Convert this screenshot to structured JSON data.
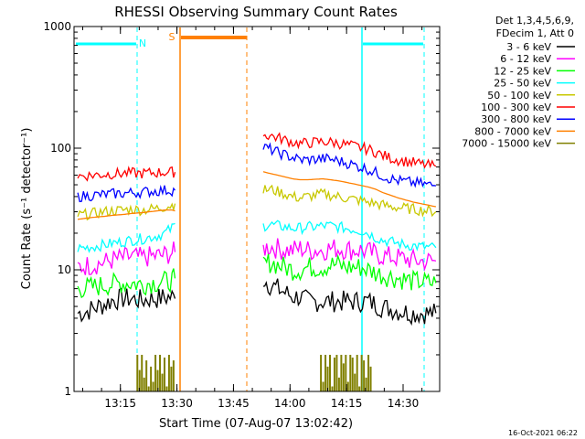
{
  "chart_data": {
    "type": "line",
    "title": "RHESSI Observing Summary Count Rates",
    "xlabel": "Start Time (07-Aug-07 13:02:42)",
    "ylabel": "Count Rate (s⁻¹ detector⁻¹)",
    "yscale": "log",
    "ylim": [
      1,
      1000
    ],
    "xlim_minutes": [
      0,
      97
    ],
    "y_ticks": [
      {
        "v": 1,
        "label": "1"
      },
      {
        "v": 10,
        "label": "10"
      },
      {
        "v": 100,
        "label": "100"
      },
      {
        "v": 1000,
        "label": "1000"
      }
    ],
    "x_ticks": [
      {
        "t": 12.3,
        "label": "13:15"
      },
      {
        "t": 27.3,
        "label": "13:30"
      },
      {
        "t": 42.3,
        "label": "13:45"
      },
      {
        "t": 57.3,
        "label": "14:00"
      },
      {
        "t": 72.3,
        "label": "14:15"
      },
      {
        "t": 87.3,
        "label": "14:30"
      }
    ],
    "legend_header": [
      "Det 1,3,4,5,6,9,",
      "FDecim 1, Att 0"
    ],
    "series": [
      {
        "name": "3 - 6 keV",
        "color": "#000000",
        "segments": [
          {
            "x": [
              1,
              3,
              5,
              8,
              10,
              13,
              15,
              18,
              20,
              22,
              24,
              26,
              26.8
            ],
            "y": [
              4.4,
              4.5,
              4.8,
              5.2,
              5.6,
              5.8,
              5.8,
              5.6,
              5.8,
              5.8,
              5.9,
              6.0,
              5.8
            ]
          },
          {
            "x": [
              50.2,
              51,
              52,
              54,
              56,
              58,
              60,
              62,
              64,
              66,
              68,
              70,
              72,
              74,
              76,
              78,
              80,
              82,
              84,
              86,
              88,
              90,
              92,
              94,
              96
            ],
            "y": [
              8.5,
              8,
              7.5,
              7,
              6.5,
              6,
              6,
              5.5,
              5.5,
              5.5,
              5.5,
              5.5,
              5.5,
              5.5,
              5.5,
              5.5,
              5.2,
              4.9,
              4.8,
              4.6,
              4.5,
              4.4,
              4.4,
              4.4,
              4.4
            ]
          }
        ]
      },
      {
        "name": "6 - 12 keV",
        "color": "#ff00ff",
        "segments": [
          {
            "x": [
              1,
              3,
              5,
              8,
              10,
              13,
              15,
              18,
              20,
              22,
              24,
              26,
              26.8
            ],
            "y": [
              10.5,
              10.8,
              11,
              11.5,
              12,
              12.5,
              12.8,
              12.5,
              12.8,
              13,
              13.2,
              13.8,
              14
            ]
          },
          {
            "x": [
              50.2,
              52,
              54,
              56,
              58,
              60,
              62,
              64,
              66,
              68,
              70,
              72,
              74,
              76,
              78,
              80,
              82,
              84,
              86,
              88,
              90,
              92,
              94,
              96
            ],
            "y": [
              15,
              15.5,
              15,
              14.5,
              14.5,
              15,
              14.5,
              14.5,
              14.5,
              15,
              15,
              14.8,
              14.5,
              14.5,
              14,
              13.5,
              13,
              12.8,
              12.5,
              12.3,
              12,
              11.8,
              11.8,
              11.8
            ]
          }
        ]
      },
      {
        "name": "12 - 25 keV",
        "color": "#00ff00",
        "segments": [
          {
            "x": [
              1,
              3,
              5,
              8,
              10,
              13,
              15,
              18,
              20,
              22,
              24,
              26,
              26.8
            ],
            "y": [
              7,
              7.1,
              7.2,
              7.5,
              7.6,
              7.8,
              7.8,
              7.6,
              7.8,
              7.9,
              8,
              8.2,
              8.5
            ]
          },
          {
            "x": [
              50.2,
              52,
              54,
              56,
              58,
              60,
              62,
              64,
              66,
              68,
              70,
              72,
              74,
              76,
              78,
              80,
              82,
              84,
              86,
              88,
              90,
              92,
              94,
              96
            ],
            "y": [
              11,
              11.5,
              11,
              10.5,
              10,
              10,
              10.5,
              10.5,
              10.5,
              11,
              11,
              10.5,
              10.5,
              10.5,
              10,
              9.5,
              9,
              8.8,
              8.5,
              8.3,
              8,
              8,
              7.8,
              7.8
            ]
          }
        ]
      },
      {
        "name": "25 - 50 keV",
        "color": "#00ffff",
        "segments": [
          {
            "x": [
              1,
              3,
              5,
              8,
              10,
              13,
              15,
              18,
              20,
              22,
              24,
              25,
              26,
              26.8
            ],
            "y": [
              15,
              15.2,
              15.5,
              16,
              16.5,
              17,
              17.5,
              18,
              18.5,
              19,
              20,
              21,
              22,
              24
            ]
          },
          {
            "x": [
              50.2,
              52,
              54,
              56,
              58,
              60,
              62,
              64,
              66,
              68,
              70,
              72,
              74,
              76,
              78,
              80,
              82,
              84,
              86,
              88,
              90,
              92,
              94,
              96
            ],
            "y": [
              23,
              23.5,
              23,
              22.5,
              22,
              22,
              22.5,
              22.5,
              23,
              23,
              22.5,
              22,
              21.5,
              21,
              20,
              18.5,
              17.5,
              17,
              16.5,
              16,
              15.8,
              15.5,
              15.3,
              15.2
            ]
          }
        ]
      },
      {
        "name": "50 - 100 keV",
        "color": "#c8c800",
        "segments": [
          {
            "x": [
              1,
              3,
              5,
              8,
              10,
              13,
              15,
              18,
              20,
              22,
              24,
              26,
              26.8
            ],
            "y": [
              28,
              28.5,
              29,
              30,
              30.5,
              31,
              31.5,
              31,
              31.5,
              32,
              33,
              34,
              35
            ]
          },
          {
            "x": [
              50.2,
              52,
              54,
              56,
              58,
              60,
              62,
              64,
              66,
              68,
              70,
              72,
              74,
              76,
              78,
              80,
              82,
              84,
              86,
              88,
              90,
              92,
              94,
              96
            ],
            "y": [
              45,
              46,
              44,
              42,
              40,
              39,
              40,
              41,
              42,
              41,
              40,
              39,
              38,
              37,
              36,
              35,
              34,
              33,
              32.5,
              32,
              31.5,
              31,
              30.5,
              30
            ]
          }
        ]
      },
      {
        "name": "100 - 300 keV",
        "color": "#ff0000",
        "segments": [
          {
            "x": [
              1,
              3,
              5,
              8,
              10,
              13,
              15,
              18,
              20,
              22,
              24,
              26,
              26.8
            ],
            "y": [
              59,
              59.5,
              60,
              61,
              61.5,
              62,
              62.5,
              62,
              62.5,
              63,
              63.5,
              63.5,
              63.5
            ]
          },
          {
            "x": [
              50.2,
              52,
              54,
              56,
              58,
              60,
              62,
              64,
              66,
              68,
              70,
              72,
              74,
              76,
              78,
              80,
              82,
              84,
              86,
              88,
              90,
              92,
              94,
              96
            ],
            "y": [
              128,
              127,
              122,
              117,
              112,
              109,
              110,
              112,
              113,
              112,
              110,
              107,
              104,
              101,
              98,
              93,
              87,
              83,
              80,
              78,
              76,
              74,
              72,
              71
            ]
          }
        ]
      },
      {
        "name": "300 - 800 keV",
        "color": "#0000ff",
        "segments": [
          {
            "x": [
              1,
              3,
              5,
              8,
              10,
              13,
              15,
              18,
              20,
              22,
              24,
              26,
              26.8
            ],
            "y": [
              40,
              40.5,
              41,
              41.5,
              42,
              42.5,
              43,
              43.5,
              44,
              44.5,
              45,
              45,
              45
            ]
          },
          {
            "x": [
              50.2,
              52,
              54,
              56,
              58,
              60,
              62,
              64,
              66,
              68,
              70,
              72,
              74,
              76,
              78,
              80,
              82,
              84,
              86,
              88,
              90,
              92,
              94,
              96
            ],
            "y": [
              102,
              98,
              92,
              88,
              84,
              80,
              80,
              81,
              82,
              81,
              79,
              76,
              73,
              70,
              67,
              63,
              59,
              56,
              54,
              53,
              52,
              51,
              50,
              49
            ]
          }
        ]
      },
      {
        "name": "800 - 7000 keV",
        "color": "#ff8000",
        "segments": [
          {
            "x": [
              1,
              3,
              5,
              8,
              10,
              13,
              15,
              18,
              20,
              22,
              24,
              26,
              26.8
            ],
            "y": [
              26,
              26.5,
              27,
              27.5,
              28,
              28.5,
              29,
              29.5,
              30,
              30.5,
              31,
              31,
              30.5
            ]
          },
          {
            "x": [
              50.2,
              52,
              54,
              56,
              58,
              60,
              62,
              64,
              66,
              68,
              70,
              72,
              74,
              76,
              78,
              80,
              82,
              84,
              86,
              88,
              90,
              92,
              94,
              96
            ],
            "y": [
              64,
              62,
              60,
              58,
              56,
              55,
              55,
              55.5,
              56,
              55,
              54,
              52.5,
              51,
              49.5,
              48,
              46,
              43,
              41,
              39,
              37.5,
              36,
              35,
              34,
              33
            ]
          }
        ]
      },
      {
        "name": "7000 - 15000 keV",
        "color": "#808000",
        "segments": [
          {
            "x": [
              16.8,
              17.4,
              18,
              18.6,
              19.2,
              19.8,
              20.4,
              21,
              21.6,
              22.2,
              22.8,
              23.4,
              24,
              24.6,
              25.2,
              25.8,
              26.4
            ],
            "y": [
              2.0,
              1.5,
              2.0,
              1.3,
              1.8,
              1.1,
              1.6,
              1.2,
              2.0,
              1.5,
              2.0,
              1.4,
              1.9,
              1.1,
              2.0,
              1.6,
              1.8
            ]
          },
          {
            "x": [
              65.5,
              66.1,
              66.7,
              67.3,
              67.9,
              68.5,
              69.1,
              69.7,
              70.3,
              70.9,
              71.5,
              72.1,
              72.7,
              73.3,
              73.9,
              74.5,
              75.1,
              75.7,
              76.3,
              76.9,
              77.5,
              78.1,
              78.7
            ],
            "y": [
              2.0,
              1.2,
              2.0,
              1.6,
              2.0,
              1.1,
              1.9,
              2.0,
              1.3,
              2.0,
              1.7,
              2.0,
              1.2,
              2.0,
              1.9,
              1.4,
              2.0,
              1.1,
              2.0,
              1.8,
              1.3,
              2.0,
              1.6
            ]
          }
        ]
      }
    ],
    "annotations": {
      "saa_marker": "S",
      "night_marker": "N",
      "footer_date": "16-Oct-2021 06:22"
    }
  }
}
